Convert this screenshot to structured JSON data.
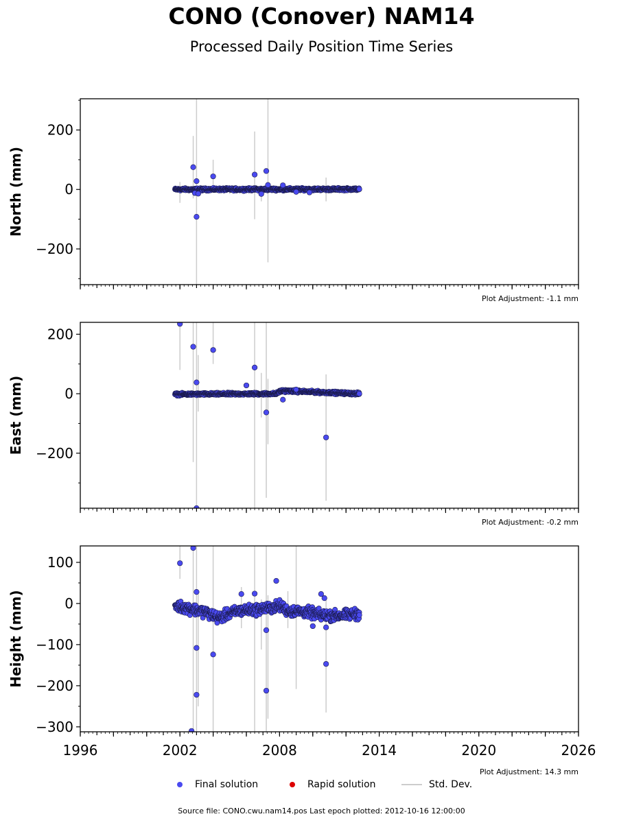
{
  "title": "CONO (Conover) NAM14",
  "subtitle": "Processed Daily Position Time Series",
  "legend": {
    "final": {
      "label": "Final solution",
      "color": "#4a4af0"
    },
    "rapid": {
      "label": "Rapid solution",
      "color": "#dd0000"
    },
    "stddev": {
      "label": "Std. Dev.",
      "color": "#cccccc"
    }
  },
  "footer": {
    "source": "Source file: CONO.cwu.nam14.pos  Last epoch plotted: 2012-10-16 12:00:00"
  },
  "chart_data": {
    "type": "scatter",
    "x_ticks": [
      "1996",
      "2002",
      "2008",
      "2014",
      "2020",
      "2026"
    ],
    "xlim": [
      1996,
      2026
    ],
    "data_range": [
      2001.7,
      2012.8
    ],
    "series": [
      {
        "ylabel": "North (mm)",
        "ylim": [
          -320,
          305
        ],
        "yticks": [
          -200,
          0,
          200
        ],
        "ytick_labels": [
          "−200",
          "0",
          "200"
        ],
        "plot_adjustment": "Plot Adjustment: -1.1 mm",
        "noise": 3,
        "trend_points": [
          [
            2001.7,
            0
          ],
          [
            2012.8,
            1
          ]
        ],
        "outliers": [
          [
            2002.8,
            75
          ],
          [
            2003.0,
            28
          ],
          [
            2003.0,
            -92
          ],
          [
            2002.9,
            -12
          ],
          [
            2003.1,
            -14
          ],
          [
            2004.0,
            44
          ],
          [
            2006.5,
            50
          ],
          [
            2007.2,
            62
          ],
          [
            2007.3,
            15
          ],
          [
            2006.9,
            -15
          ],
          [
            2008.2,
            14
          ],
          [
            2009.0,
            -8
          ],
          [
            2009.8,
            -10
          ],
          [
            2012.8,
            1
          ]
        ],
        "error_bars": [
          [
            2002.8,
            -30,
            180
          ],
          [
            2003.0,
            -320,
            305
          ],
          [
            2002.0,
            -45,
            25
          ],
          [
            2004.0,
            10,
            100
          ],
          [
            2006.5,
            -100,
            195
          ],
          [
            2006.9,
            -40,
            10
          ],
          [
            2007.3,
            -245,
            305
          ],
          [
            2010.8,
            -40,
            40
          ],
          [
            2005.0,
            -15,
            15
          ]
        ]
      },
      {
        "ylabel": "East (mm)",
        "ylim": [
          -385,
          240
        ],
        "yticks": [
          -200,
          0,
          200
        ],
        "ytick_labels": [
          "−200",
          "0",
          "200"
        ],
        "plot_adjustment": "Plot Adjustment: -0.2 mm",
        "noise": 3,
        "trend_points": [
          [
            2001.7,
            -2
          ],
          [
            2007.8,
            0
          ],
          [
            2008.1,
            10
          ],
          [
            2012.8,
            0
          ]
        ],
        "outliers": [
          [
            2002.0,
            235
          ],
          [
            2002.8,
            158
          ],
          [
            2003.0,
            38
          ],
          [
            2004.0,
            147
          ],
          [
            2006.5,
            88
          ],
          [
            2006.0,
            28
          ],
          [
            2007.2,
            -63
          ],
          [
            2010.8,
            -147
          ],
          [
            2003.0,
            -385
          ],
          [
            2008.2,
            -20
          ],
          [
            2009.0,
            14
          ],
          [
            2012.8,
            0
          ]
        ],
        "error_bars": [
          [
            2002.0,
            80,
            240
          ],
          [
            2002.8,
            -230,
            240
          ],
          [
            2003.0,
            -385,
            240
          ],
          [
            2003.1,
            -60,
            130
          ],
          [
            2004.0,
            100,
            240
          ],
          [
            2006.5,
            -385,
            240
          ],
          [
            2006.9,
            -80,
            70
          ],
          [
            2007.2,
            -350,
            240
          ],
          [
            2007.3,
            -170,
            50
          ],
          [
            2010.8,
            -360,
            65
          ]
        ]
      },
      {
        "ylabel": "Height (mm)",
        "ylim": [
          -312,
          140
        ],
        "yticks": [
          -300,
          -200,
          -100,
          0,
          100
        ],
        "ytick_labels": [
          "−300",
          "−200",
          "−100",
          "0",
          "100"
        ],
        "plot_adjustment": "Plot Adjustment: 14.3 mm",
        "noise": 9,
        "trend_points": [
          [
            2001.7,
            -5
          ],
          [
            2003.5,
            -20
          ],
          [
            2004.3,
            -35
          ],
          [
            2005.5,
            -18
          ],
          [
            2006.5,
            -15
          ],
          [
            2007.6,
            -10
          ],
          [
            2008.0,
            -5
          ],
          [
            2008.5,
            -18
          ],
          [
            2009.5,
            -20
          ],
          [
            2010.5,
            -28
          ],
          [
            2011.5,
            -30
          ],
          [
            2012.8,
            -25
          ]
        ],
        "outliers": [
          [
            2002.0,
            98
          ],
          [
            2002.8,
            135
          ],
          [
            2003.0,
            28
          ],
          [
            2003.0,
            -108
          ],
          [
            2003.0,
            -222
          ],
          [
            2002.7,
            -310
          ],
          [
            2004.0,
            -124
          ],
          [
            2006.5,
            24
          ],
          [
            2007.2,
            -212
          ],
          [
            2007.2,
            -65
          ],
          [
            2007.8,
            55
          ],
          [
            2010.8,
            -147
          ],
          [
            2010.8,
            -58
          ],
          [
            2010.0,
            -55
          ],
          [
            2010.5,
            23
          ],
          [
            2010.7,
            13
          ],
          [
            2005.7,
            23
          ],
          [
            2012.8,
            -28
          ]
        ],
        "error_bars": [
          [
            2002.0,
            60,
            140
          ],
          [
            2002.8,
            -312,
            140
          ],
          [
            2003.0,
            -312,
            140
          ],
          [
            2003.1,
            -250,
            30
          ],
          [
            2004.0,
            -312,
            140
          ],
          [
            2006.5,
            -312,
            140
          ],
          [
            2006.9,
            -112,
            10
          ],
          [
            2007.2,
            -312,
            140
          ],
          [
            2007.3,
            -280,
            20
          ],
          [
            2009.0,
            -208,
            140
          ],
          [
            2010.8,
            -265,
            10
          ],
          [
            2005.7,
            -60,
            40
          ],
          [
            2008.5,
            -60,
            30
          ]
        ]
      }
    ]
  }
}
